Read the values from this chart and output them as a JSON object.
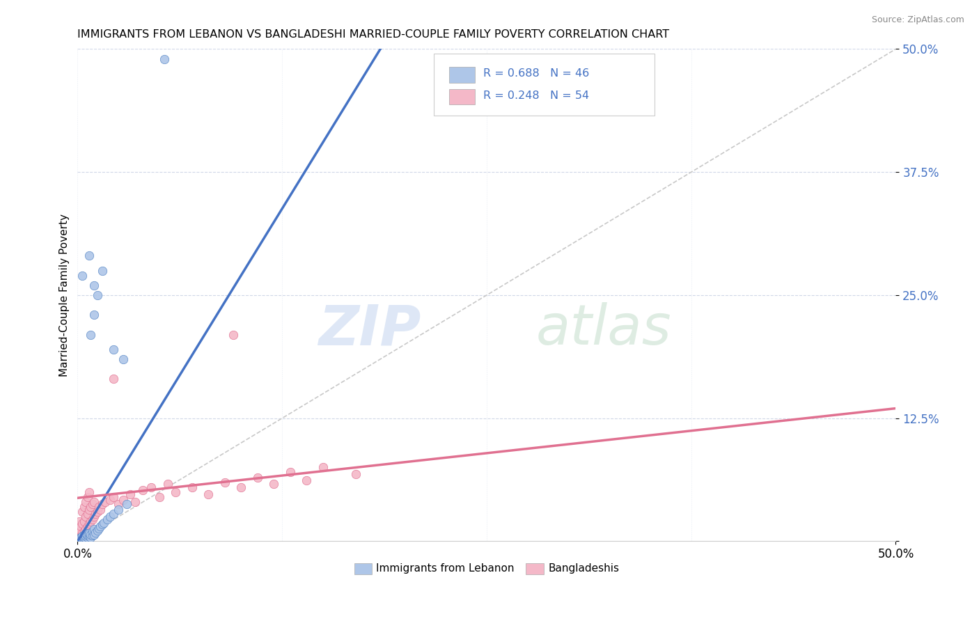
{
  "title": "IMMIGRANTS FROM LEBANON VS BANGLADESHI MARRIED-COUPLE FAMILY POVERTY CORRELATION CHART",
  "source": "Source: ZipAtlas.com",
  "ylabel": "Married-Couple Family Poverty",
  "legend_label_blue": "R = 0.688   N = 46",
  "legend_label_pink": "R = 0.248   N = 54",
  "bottom_label_blue": "Immigrants from Lebanon",
  "bottom_label_pink": "Bangladeshis",
  "blue_fill": "#aec6e8",
  "pink_fill": "#f4b8c8",
  "blue_edge": "#5585c5",
  "pink_edge": "#e07090",
  "blue_line": "#4472c4",
  "pink_line": "#e07090",
  "ref_line": "#c8c8c8",
  "label_color": "#4472c4",
  "xmin": 0.0,
  "xmax": 0.5,
  "ymin": 0.0,
  "ymax": 0.5,
  "yticks": [
    0.0,
    0.125,
    0.25,
    0.375,
    0.5
  ],
  "ytick_labels": [
    "",
    "12.5%",
    "25.0%",
    "37.5%",
    "50.0%"
  ],
  "blue_line_x0": 0.0,
  "blue_line_y0": 0.0,
  "blue_line_x1": 0.185,
  "blue_line_y1": 0.5,
  "pink_line_x0": 0.0,
  "pink_line_y0": 0.044,
  "pink_line_x1": 0.5,
  "pink_line_y1": 0.135,
  "blue_scatter": [
    [
      0.001,
      0.001
    ],
    [
      0.001,
      0.002
    ],
    [
      0.001,
      0.003
    ],
    [
      0.002,
      0.001
    ],
    [
      0.002,
      0.002
    ],
    [
      0.002,
      0.004
    ],
    [
      0.003,
      0.002
    ],
    [
      0.003,
      0.003
    ],
    [
      0.003,
      0.005
    ],
    [
      0.004,
      0.002
    ],
    [
      0.004,
      0.004
    ],
    [
      0.004,
      0.007
    ],
    [
      0.005,
      0.003
    ],
    [
      0.005,
      0.005
    ],
    [
      0.005,
      0.008
    ],
    [
      0.006,
      0.004
    ],
    [
      0.006,
      0.006
    ],
    [
      0.007,
      0.005
    ],
    [
      0.007,
      0.008
    ],
    [
      0.008,
      0.004
    ],
    [
      0.008,
      0.007
    ],
    [
      0.009,
      0.006
    ],
    [
      0.009,
      0.01
    ],
    [
      0.01,
      0.007
    ],
    [
      0.01,
      0.012
    ],
    [
      0.011,
      0.009
    ],
    [
      0.012,
      0.011
    ],
    [
      0.013,
      0.013
    ],
    [
      0.014,
      0.015
    ],
    [
      0.015,
      0.017
    ],
    [
      0.016,
      0.019
    ],
    [
      0.018,
      0.022
    ],
    [
      0.02,
      0.025
    ],
    [
      0.022,
      0.028
    ],
    [
      0.025,
      0.032
    ],
    [
      0.03,
      0.038
    ],
    [
      0.003,
      0.27
    ],
    [
      0.007,
      0.29
    ],
    [
      0.01,
      0.26
    ],
    [
      0.012,
      0.25
    ],
    [
      0.015,
      0.275
    ],
    [
      0.01,
      0.23
    ],
    [
      0.008,
      0.21
    ],
    [
      0.053,
      0.49
    ],
    [
      0.022,
      0.195
    ],
    [
      0.028,
      0.185
    ]
  ],
  "pink_scatter": [
    [
      0.001,
      0.01
    ],
    [
      0.001,
      0.02
    ],
    [
      0.002,
      0.005
    ],
    [
      0.002,
      0.015
    ],
    [
      0.003,
      0.008
    ],
    [
      0.003,
      0.018
    ],
    [
      0.003,
      0.03
    ],
    [
      0.004,
      0.01
    ],
    [
      0.004,
      0.02
    ],
    [
      0.004,
      0.035
    ],
    [
      0.005,
      0.012
    ],
    [
      0.005,
      0.025
    ],
    [
      0.005,
      0.04
    ],
    [
      0.006,
      0.015
    ],
    [
      0.006,
      0.028
    ],
    [
      0.006,
      0.045
    ],
    [
      0.007,
      0.018
    ],
    [
      0.007,
      0.032
    ],
    [
      0.007,
      0.05
    ],
    [
      0.008,
      0.02
    ],
    [
      0.008,
      0.035
    ],
    [
      0.009,
      0.022
    ],
    [
      0.009,
      0.038
    ],
    [
      0.01,
      0.025
    ],
    [
      0.01,
      0.04
    ],
    [
      0.011,
      0.028
    ],
    [
      0.012,
      0.03
    ],
    [
      0.013,
      0.035
    ],
    [
      0.014,
      0.032
    ],
    [
      0.015,
      0.038
    ],
    [
      0.017,
      0.04
    ],
    [
      0.02,
      0.042
    ],
    [
      0.022,
      0.045
    ],
    [
      0.025,
      0.038
    ],
    [
      0.028,
      0.042
    ],
    [
      0.032,
      0.048
    ],
    [
      0.035,
      0.04
    ],
    [
      0.04,
      0.052
    ],
    [
      0.045,
      0.055
    ],
    [
      0.05,
      0.045
    ],
    [
      0.055,
      0.058
    ],
    [
      0.06,
      0.05
    ],
    [
      0.07,
      0.055
    ],
    [
      0.08,
      0.048
    ],
    [
      0.09,
      0.06
    ],
    [
      0.1,
      0.055
    ],
    [
      0.11,
      0.065
    ],
    [
      0.12,
      0.058
    ],
    [
      0.13,
      0.07
    ],
    [
      0.14,
      0.062
    ],
    [
      0.15,
      0.075
    ],
    [
      0.17,
      0.068
    ],
    [
      0.095,
      0.21
    ],
    [
      0.022,
      0.165
    ]
  ]
}
